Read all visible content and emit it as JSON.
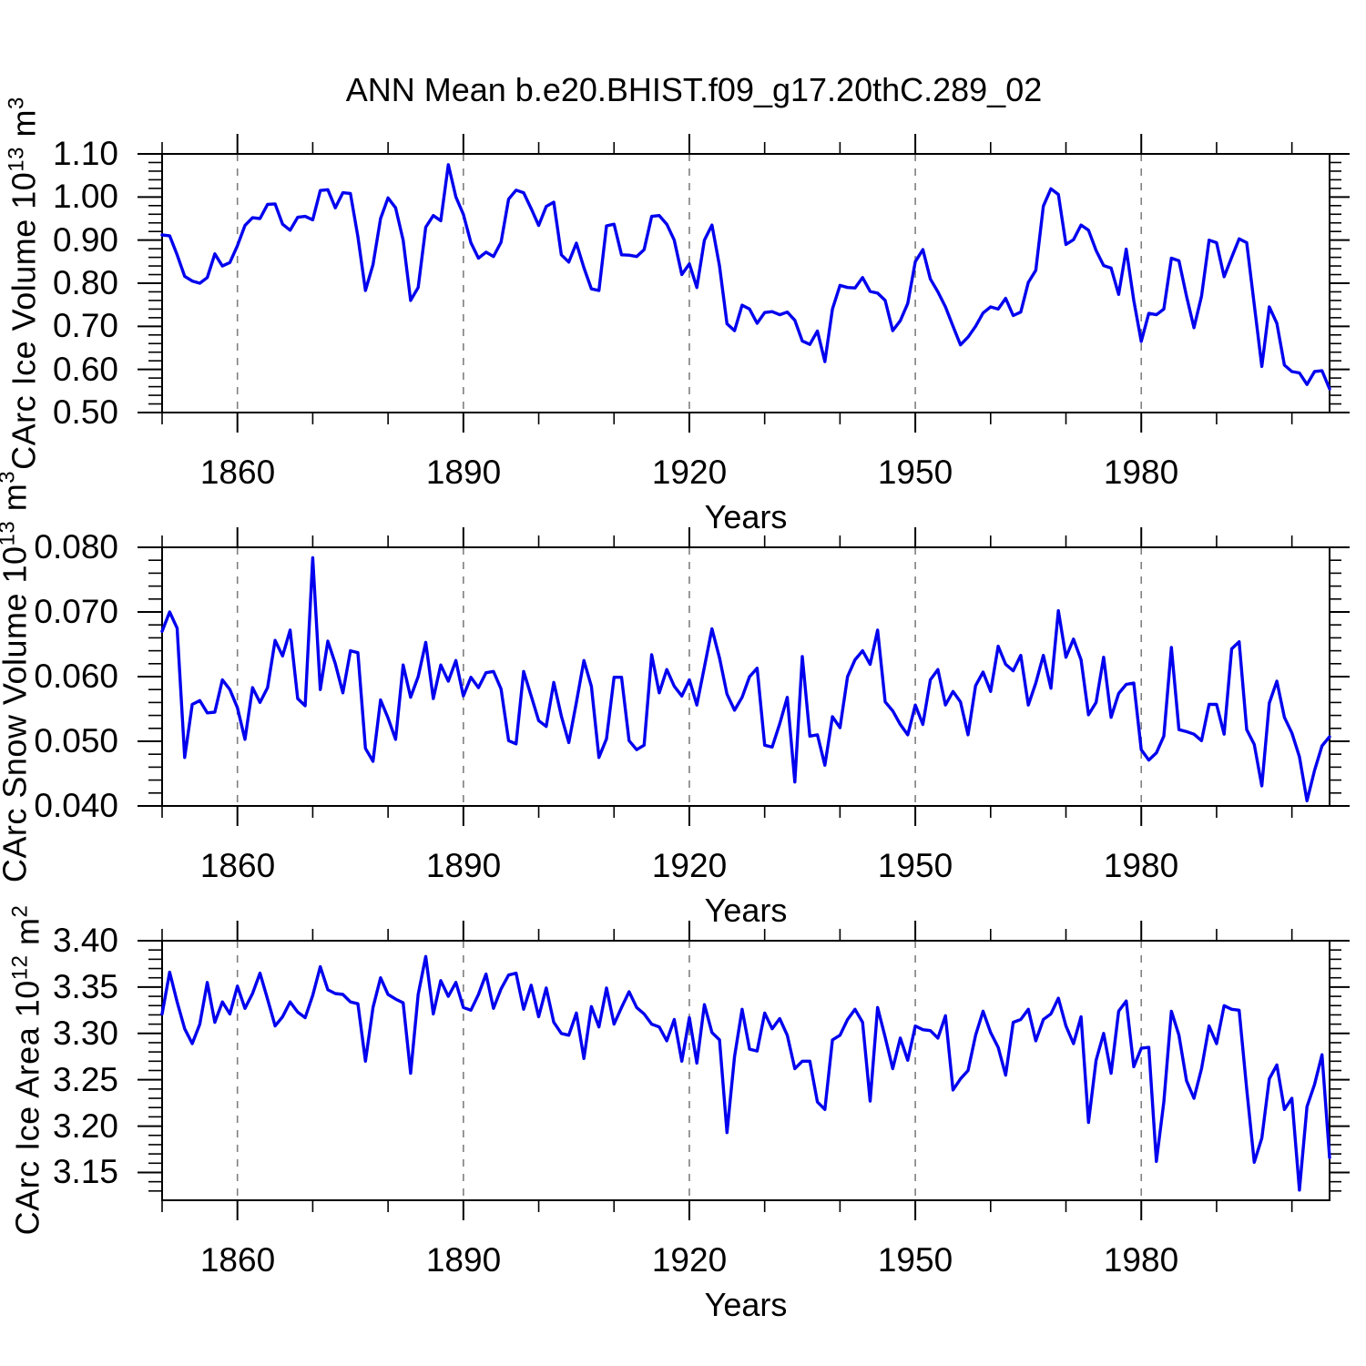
{
  "title": "ANN Mean b.e20.BHIST.f09_g17.20thC.289_02",
  "colors": {
    "line": "#0000EE",
    "grid": "#7F7F7F",
    "axis": "#000000",
    "background": "#FFFFFF",
    "text": "#000000"
  },
  "chart_data": [
    {
      "type": "line",
      "name": "carc-ice-volume",
      "ylabel": {
        "prefix": "CArc Ice Volume 10",
        "exp": "13",
        "mid": " m",
        "exp2": "3"
      },
      "xlabel": "Years",
      "x_start": 1850,
      "x_step": 1,
      "xlim": [
        1850,
        2005
      ],
      "ylim": [
        0.5,
        1.1
      ],
      "xticks": [
        1860,
        1890,
        1920,
        1950,
        1980
      ],
      "xtick_labels": [
        "1860",
        "1890",
        "1920",
        "1950",
        "1980"
      ],
      "x_minor_step": 10,
      "yticks": [
        1.1,
        1.0,
        0.9,
        0.8,
        0.7,
        0.6,
        0.5
      ],
      "ytick_labels": [
        "1.10",
        "1.00",
        "0.90",
        "0.80",
        "0.70",
        "0.60",
        "0.50"
      ],
      "y_minor_step": 0.02,
      "grid_at_xticks": true,
      "values": [
        0.912,
        0.91,
        0.866,
        0.816,
        0.805,
        0.8,
        0.813,
        0.868,
        0.84,
        0.848,
        0.887,
        0.934,
        0.952,
        0.95,
        0.983,
        0.984,
        0.937,
        0.923,
        0.953,
        0.955,
        0.947,
        1.015,
        1.017,
        0.975,
        1.01,
        1.008,
        0.908,
        0.783,
        0.843,
        0.95,
        0.998,
        0.975,
        0.9,
        0.76,
        0.79,
        0.93,
        0.957,
        0.945,
        1.075,
        1.0,
        0.96,
        0.894,
        0.858,
        0.872,
        0.862,
        0.895,
        0.995,
        1.016,
        1.01,
        0.973,
        0.934,
        0.978,
        0.988,
        0.866,
        0.849,
        0.893,
        0.836,
        0.787,
        0.783,
        0.933,
        0.937,
        0.866,
        0.865,
        0.862,
        0.878,
        0.955,
        0.957,
        0.937,
        0.9,
        0.82,
        0.845,
        0.79,
        0.9,
        0.935,
        0.84,
        0.706,
        0.69,
        0.749,
        0.74,
        0.707,
        0.732,
        0.734,
        0.727,
        0.733,
        0.714,
        0.666,
        0.658,
        0.689,
        0.618,
        0.74,
        0.795,
        0.79,
        0.789,
        0.813,
        0.781,
        0.777,
        0.76,
        0.69,
        0.713,
        0.753,
        0.85,
        0.878,
        0.81,
        0.78,
        0.745,
        0.7,
        0.657,
        0.675,
        0.7,
        0.731,
        0.745,
        0.74,
        0.765,
        0.725,
        0.733,
        0.802,
        0.83,
        0.979,
        1.019,
        1.006,
        0.89,
        0.901,
        0.935,
        0.923,
        0.876,
        0.841,
        0.835,
        0.774,
        0.879,
        0.76,
        0.665,
        0.73,
        0.727,
        0.74,
        0.858,
        0.852,
        0.77,
        0.697,
        0.77,
        0.9,
        0.894,
        0.815,
        0.86,
        0.903,
        0.894,
        0.75,
        0.607,
        0.745,
        0.707,
        0.61,
        0.595,
        0.592,
        0.565,
        0.595,
        0.597,
        0.555
      ]
    },
    {
      "type": "line",
      "name": "carc-snow-volume",
      "ylabel": {
        "prefix": "CArc Snow Volume 10",
        "exp": "13",
        "mid": " m",
        "exp2": "3"
      },
      "xlabel": "Years",
      "x_start": 1850,
      "x_step": 1,
      "xlim": [
        1850,
        2005
      ],
      "ylim": [
        0.04,
        0.08
      ],
      "xticks": [
        1860,
        1890,
        1920,
        1950,
        1980
      ],
      "xtick_labels": [
        "1860",
        "1890",
        "1920",
        "1950",
        "1980"
      ],
      "x_minor_step": 10,
      "yticks": [
        0.08,
        0.07,
        0.06,
        0.05,
        0.04
      ],
      "ytick_labels": [
        "0.080",
        "0.070",
        "0.060",
        "0.050",
        "0.040"
      ],
      "y_minor_step": 0.002,
      "grid_at_xticks": true,
      "values": [
        0.067,
        0.07,
        0.0675,
        0.0475,
        0.0557,
        0.0563,
        0.0544,
        0.0545,
        0.0595,
        0.058,
        0.0552,
        0.0503,
        0.0583,
        0.056,
        0.0583,
        0.0656,
        0.0632,
        0.0672,
        0.0566,
        0.0555,
        0.0784,
        0.058,
        0.0655,
        0.062,
        0.0575,
        0.064,
        0.0637,
        0.0489,
        0.0469,
        0.0564,
        0.0536,
        0.0503,
        0.0618,
        0.0568,
        0.06,
        0.0653,
        0.0566,
        0.0618,
        0.0593,
        0.0625,
        0.057,
        0.0599,
        0.0583,
        0.0606,
        0.0608,
        0.0581,
        0.0501,
        0.0496,
        0.0608,
        0.057,
        0.0532,
        0.0523,
        0.0591,
        0.0539,
        0.0498,
        0.056,
        0.0625,
        0.0585,
        0.0475,
        0.0504,
        0.0599,
        0.0599,
        0.0501,
        0.0487,
        0.0494,
        0.0634,
        0.0575,
        0.0611,
        0.0585,
        0.057,
        0.0595,
        0.0556,
        0.0615,
        0.0674,
        0.0629,
        0.0573,
        0.0548,
        0.0568,
        0.06,
        0.0613,
        0.0494,
        0.0491,
        0.0527,
        0.0568,
        0.0437,
        0.0631,
        0.0508,
        0.051,
        0.0463,
        0.0538,
        0.0521,
        0.06,
        0.0626,
        0.064,
        0.0619,
        0.0672,
        0.0561,
        0.0547,
        0.0526,
        0.051,
        0.0556,
        0.0526,
        0.0595,
        0.0611,
        0.0556,
        0.0577,
        0.0561,
        0.051,
        0.0586,
        0.0607,
        0.0577,
        0.0647,
        0.0619,
        0.0609,
        0.0633,
        0.0556,
        0.059,
        0.0633,
        0.0582,
        0.0702,
        0.063,
        0.0658,
        0.0626,
        0.0541,
        0.056,
        0.063,
        0.0537,
        0.0574,
        0.0588,
        0.059,
        0.0487,
        0.0471,
        0.0482,
        0.0508,
        0.0645,
        0.0518,
        0.0515,
        0.0511,
        0.0501,
        0.0557,
        0.0557,
        0.0511,
        0.0643,
        0.0654,
        0.0518,
        0.0495,
        0.0431,
        0.0559,
        0.0593,
        0.0537,
        0.0513,
        0.0476,
        0.0408,
        0.0455,
        0.0493,
        0.0507
      ]
    },
    {
      "type": "line",
      "name": "carc-ice-area",
      "ylabel": {
        "prefix": "CArc Ice Area 10",
        "exp": "12",
        "mid": " m",
        "exp2": "2"
      },
      "xlabel": "Years",
      "x_start": 1850,
      "x_step": 1,
      "xlim": [
        1850,
        2005
      ],
      "ylim": [
        3.12,
        3.4
      ],
      "xticks": [
        1860,
        1890,
        1920,
        1950,
        1980
      ],
      "xtick_labels": [
        "1860",
        "1890",
        "1920",
        "1950",
        "1980"
      ],
      "x_minor_step": 10,
      "yticks": [
        3.4,
        3.35,
        3.3,
        3.25,
        3.2,
        3.15
      ],
      "ytick_labels": [
        "3.40",
        "3.35",
        "3.30",
        "3.25",
        "3.20",
        "3.15"
      ],
      "y_minor_step": 0.01,
      "grid_at_xticks": true,
      "values": [
        3.321,
        3.366,
        3.334,
        3.305,
        3.289,
        3.31,
        3.355,
        3.312,
        3.334,
        3.321,
        3.351,
        3.327,
        3.343,
        3.365,
        3.337,
        3.308,
        3.318,
        3.334,
        3.323,
        3.317,
        3.341,
        3.372,
        3.347,
        3.343,
        3.342,
        3.334,
        3.332,
        3.27,
        3.328,
        3.36,
        3.342,
        3.337,
        3.333,
        3.257,
        3.342,
        3.383,
        3.321,
        3.357,
        3.34,
        3.355,
        3.328,
        3.325,
        3.342,
        3.364,
        3.327,
        3.348,
        3.363,
        3.365,
        3.326,
        3.352,
        3.318,
        3.349,
        3.312,
        3.3,
        3.298,
        3.322,
        3.273,
        3.329,
        3.307,
        3.349,
        3.31,
        3.328,
        3.345,
        3.328,
        3.321,
        3.31,
        3.307,
        3.292,
        3.315,
        3.27,
        3.317,
        3.268,
        3.331,
        3.301,
        3.293,
        3.193,
        3.275,
        3.326,
        3.283,
        3.281,
        3.322,
        3.305,
        3.316,
        3.298,
        3.262,
        3.27,
        3.27,
        3.226,
        3.218,
        3.293,
        3.298,
        3.315,
        3.326,
        3.312,
        3.227,
        3.328,
        3.296,
        3.262,
        3.295,
        3.271,
        3.308,
        3.304,
        3.303,
        3.295,
        3.319,
        3.239,
        3.251,
        3.26,
        3.298,
        3.324,
        3.301,
        3.285,
        3.255,
        3.312,
        3.315,
        3.326,
        3.292,
        3.315,
        3.321,
        3.338,
        3.308,
        3.289,
        3.318,
        3.204,
        3.271,
        3.3,
        3.257,
        3.324,
        3.335,
        3.264,
        3.284,
        3.285,
        3.162,
        3.226,
        3.324,
        3.298,
        3.249,
        3.23,
        3.262,
        3.308,
        3.289,
        3.33,
        3.326,
        3.325,
        3.24,
        3.161,
        3.187,
        3.251,
        3.266,
        3.218,
        3.23,
        3.131,
        3.221,
        3.245,
        3.277,
        3.166
      ]
    }
  ]
}
